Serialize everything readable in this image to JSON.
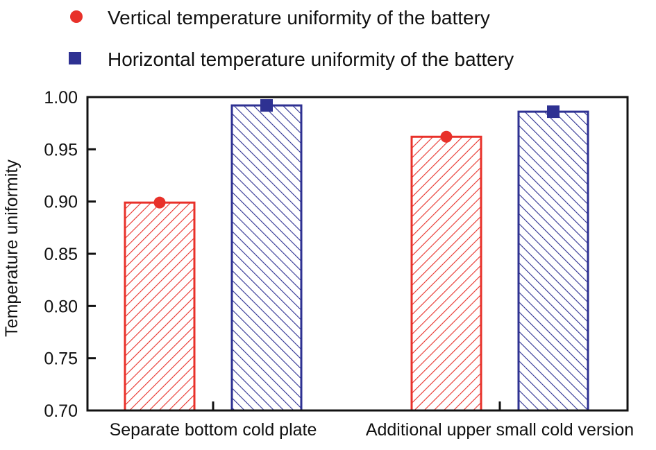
{
  "chart_data": {
    "type": "bar",
    "categories": [
      "Separate bottom cold plate",
      "Additional upper small cold version"
    ],
    "series": [
      {
        "name": "Vertical temperature uniformity of the battery",
        "values": [
          0.899,
          0.962
        ],
        "color": "#e8312a",
        "marker": "circle"
      },
      {
        "name": "Horizontal temperature uniformity of the battery",
        "values": [
          0.992,
          0.986
        ],
        "color": "#2e3192",
        "marker": "square"
      }
    ],
    "xlabel": "",
    "ylabel": "Temperature uniformity",
    "ylim": [
      0.7,
      1.0
    ],
    "yticks": [
      "0.70",
      "0.75",
      "0.80",
      "0.85",
      "0.90",
      "0.95",
      "1.00"
    ],
    "legend_position": "top-left",
    "grid": false,
    "fill": "hatched"
  }
}
